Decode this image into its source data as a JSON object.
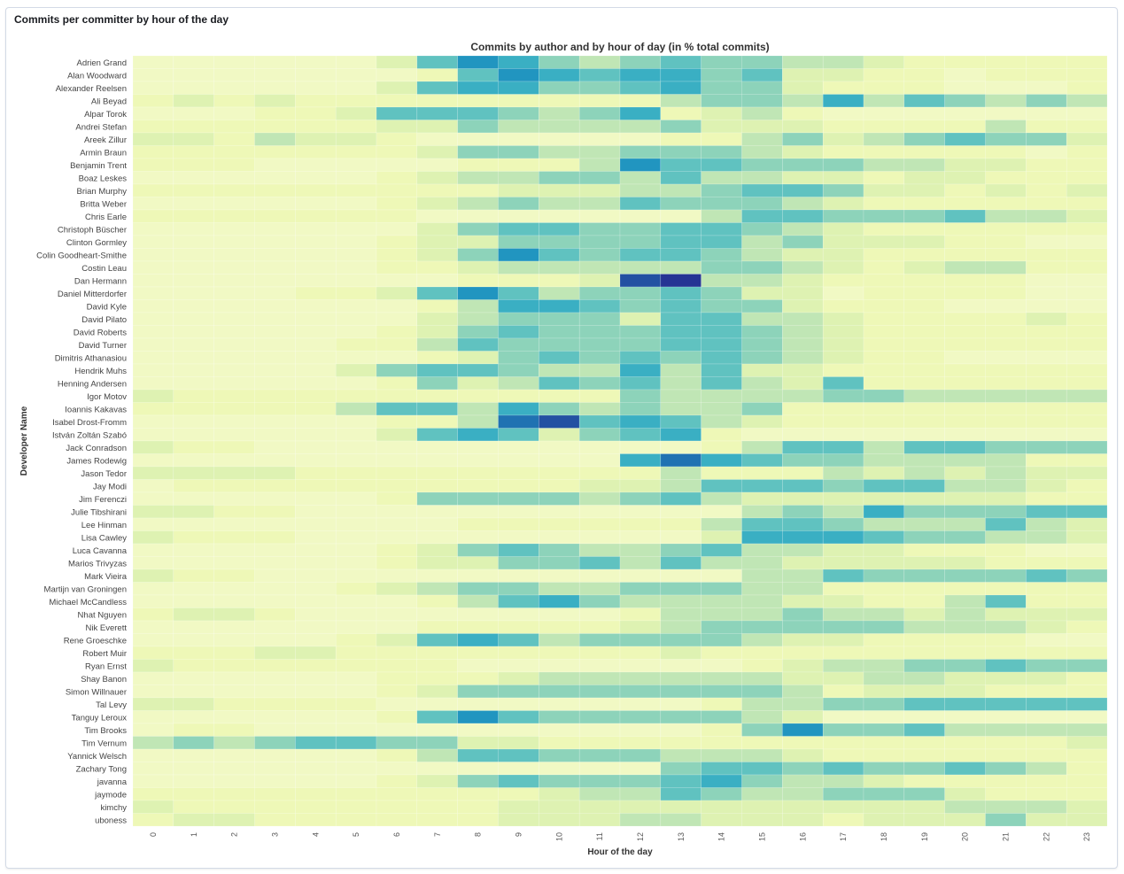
{
  "panel": {
    "title": "Commits per committer by hour of the day"
  },
  "chart_data": {
    "type": "heatmap",
    "title": "Commits by author and by hour of day (in % total commits)",
    "xlabel": "Hour of the day",
    "ylabel": "Developer Name",
    "x": [
      "0",
      "1",
      "2",
      "3",
      "4",
      "5",
      "6",
      "7",
      "8",
      "9",
      "10",
      "11",
      "12",
      "13",
      "14",
      "15",
      "16",
      "17",
      "18",
      "19",
      "20",
      "21",
      "22",
      "23"
    ],
    "y": [
      "Adrien Grand",
      "Alan Woodward",
      "Alexander Reelsen",
      "Ali Beyad",
      "Alpar Torok",
      "Andrei Stefan",
      "Areek Zillur",
      "Armin Braun",
      "Benjamin Trent",
      "Boaz Leskes",
      "Brian Murphy",
      "Britta Weber",
      "Chris Earle",
      "Christoph Büscher",
      "Clinton Gormley",
      "Colin Goodheart-Smithe",
      "Costin Leau",
      "Dan Hermann",
      "Daniel Mitterdorfer",
      "David Kyle",
      "David Pilato",
      "David Roberts",
      "David Turner",
      "Dimitris Athanasiou",
      "Hendrik Muhs",
      "Henning Andersen",
      "Igor Motov",
      "Ioannis Kakavas",
      "Isabel Drost-Fromm",
      "István Zoltán Szabó",
      "Jack Conradson",
      "James Rodewig",
      "Jason Tedor",
      "Jay Modi",
      "Jim Ferenczi",
      "Julie Tibshirani",
      "Lee Hinman",
      "Lisa Cawley",
      "Luca Cavanna",
      "Marios Trivyzas",
      "Mark Vieira",
      "Martijn van Groningen",
      "Michael McCandless",
      "Nhat Nguyen",
      "Nik Everett",
      "Rene Groeschke",
      "Robert Muir",
      "Ryan Ernst",
      "Shay Banon",
      "Simon Willnauer",
      "Tal Levy",
      "Tanguy Leroux",
      "Tim Brooks",
      "Tim Vernum",
      "Yannick Welsch",
      "Zachary Tong",
      "javanna",
      "jaymode",
      "kimchy",
      "uboness"
    ],
    "values": [
      [
        0,
        0,
        0,
        0,
        0,
        0,
        2,
        5,
        7,
        6,
        4,
        3,
        4,
        5,
        4,
        4,
        3,
        3,
        2,
        1,
        1,
        1,
        1,
        1
      ],
      [
        0,
        0,
        0,
        0,
        0,
        0,
        0,
        1,
        5,
        7,
        6,
        5,
        6,
        6,
        4,
        5,
        2,
        2,
        1,
        1,
        0,
        1,
        1,
        1
      ],
      [
        0,
        0,
        0,
        0,
        0,
        0,
        2,
        5,
        6,
        6,
        4,
        4,
        5,
        6,
        4,
        4,
        2,
        1,
        1,
        1,
        0,
        0,
        0,
        1
      ],
      [
        1,
        2,
        1,
        2,
        1,
        1,
        1,
        1,
        1,
        1,
        1,
        1,
        1,
        3,
        4,
        4,
        3,
        6,
        3,
        5,
        4,
        3,
        4,
        3
      ],
      [
        0,
        0,
        0,
        1,
        1,
        2,
        5,
        5,
        5,
        4,
        3,
        4,
        6,
        1,
        2,
        3,
        1,
        0,
        0,
        0,
        0,
        0,
        0,
        0
      ],
      [
        1,
        1,
        1,
        1,
        1,
        1,
        2,
        2,
        4,
        3,
        3,
        3,
        3,
        4,
        2,
        2,
        2,
        1,
        1,
        1,
        1,
        3,
        1,
        1
      ],
      [
        2,
        2,
        1,
        3,
        2,
        2,
        1,
        0,
        0,
        0,
        0,
        0,
        0,
        1,
        1,
        3,
        4,
        2,
        3,
        4,
        5,
        4,
        4,
        2
      ],
      [
        1,
        1,
        1,
        1,
        1,
        1,
        1,
        2,
        4,
        4,
        3,
        3,
        4,
        4,
        4,
        3,
        2,
        1,
        1,
        1,
        1,
        1,
        0,
        1
      ],
      [
        1,
        1,
        1,
        0,
        0,
        0,
        0,
        0,
        1,
        1,
        1,
        3,
        7,
        5,
        5,
        4,
        4,
        4,
        3,
        3,
        2,
        2,
        1,
        1
      ],
      [
        0,
        0,
        0,
        0,
        0,
        0,
        1,
        2,
        3,
        3,
        4,
        4,
        3,
        5,
        3,
        3,
        2,
        2,
        1,
        2,
        2,
        1,
        1,
        1
      ],
      [
        1,
        1,
        1,
        1,
        1,
        1,
        1,
        1,
        1,
        2,
        2,
        2,
        3,
        3,
        4,
        5,
        5,
        4,
        2,
        2,
        1,
        2,
        1,
        2
      ],
      [
        0,
        0,
        0,
        0,
        0,
        0,
        1,
        2,
        3,
        4,
        3,
        3,
        5,
        4,
        4,
        4,
        3,
        2,
        1,
        1,
        1,
        1,
        1,
        1
      ],
      [
        1,
        1,
        1,
        1,
        1,
        1,
        1,
        0,
        0,
        0,
        0,
        0,
        0,
        0,
        3,
        5,
        5,
        4,
        4,
        4,
        5,
        3,
        3,
        2
      ],
      [
        0,
        0,
        0,
        0,
        0,
        0,
        0,
        2,
        4,
        5,
        5,
        4,
        4,
        5,
        5,
        4,
        3,
        2,
        1,
        1,
        1,
        1,
        1,
        1
      ],
      [
        0,
        0,
        0,
        0,
        0,
        0,
        1,
        2,
        2,
        4,
        4,
        4,
        4,
        5,
        5,
        3,
        4,
        2,
        2,
        2,
        1,
        1,
        0,
        0
      ],
      [
        0,
        0,
        0,
        0,
        0,
        0,
        1,
        2,
        4,
        7,
        5,
        4,
        5,
        5,
        4,
        3,
        2,
        2,
        1,
        1,
        1,
        1,
        1,
        1
      ],
      [
        0,
        0,
        0,
        0,
        0,
        0,
        1,
        1,
        2,
        3,
        3,
        3,
        3,
        3,
        4,
        4,
        3,
        2,
        1,
        2,
        3,
        3,
        1,
        1
      ],
      [
        0,
        0,
        0,
        0,
        0,
        0,
        0,
        0,
        1,
        1,
        1,
        2,
        9,
        10,
        3,
        3,
        2,
        1,
        1,
        1,
        1,
        1,
        0,
        0
      ],
      [
        0,
        0,
        0,
        0,
        1,
        1,
        2,
        5,
        7,
        5,
        3,
        4,
        4,
        5,
        4,
        2,
        2,
        0,
        1,
        1,
        1,
        1,
        0,
        0
      ],
      [
        0,
        0,
        0,
        0,
        0,
        0,
        0,
        1,
        3,
        6,
        6,
        5,
        4,
        5,
        4,
        4,
        2,
        1,
        1,
        1,
        0,
        0,
        0,
        0
      ],
      [
        0,
        0,
        0,
        0,
        0,
        0,
        0,
        2,
        3,
        4,
        4,
        4,
        2,
        5,
        5,
        3,
        3,
        2,
        1,
        1,
        1,
        1,
        2,
        1
      ],
      [
        0,
        0,
        0,
        0,
        0,
        0,
        1,
        2,
        4,
        5,
        4,
        4,
        4,
        5,
        5,
        4,
        3,
        2,
        1,
        1,
        1,
        1,
        1,
        1
      ],
      [
        0,
        0,
        0,
        0,
        0,
        1,
        1,
        3,
        5,
        4,
        4,
        4,
        4,
        5,
        5,
        4,
        3,
        2,
        1,
        1,
        1,
        1,
        1,
        1
      ],
      [
        0,
        0,
        0,
        0,
        0,
        0,
        0,
        1,
        2,
        4,
        5,
        4,
        5,
        4,
        5,
        4,
        3,
        2,
        1,
        1,
        0,
        0,
        0,
        0
      ],
      [
        0,
        0,
        0,
        0,
        0,
        2,
        4,
        5,
        5,
        4,
        3,
        3,
        6,
        3,
        5,
        2,
        2,
        1,
        1,
        1,
        1,
        1,
        1,
        1
      ],
      [
        0,
        0,
        0,
        0,
        0,
        0,
        1,
        4,
        2,
        3,
        5,
        4,
        5,
        3,
        5,
        3,
        2,
        5,
        1,
        1,
        1,
        1,
        1,
        1
      ],
      [
        2,
        1,
        1,
        1,
        1,
        1,
        1,
        1,
        1,
        1,
        1,
        1,
        4,
        3,
        3,
        3,
        3,
        4,
        4,
        3,
        3,
        3,
        3,
        3
      ],
      [
        1,
        1,
        1,
        1,
        1,
        3,
        5,
        5,
        3,
        6,
        4,
        3,
        4,
        3,
        3,
        4,
        1,
        1,
        1,
        1,
        1,
        1,
        1,
        1
      ],
      [
        0,
        0,
        0,
        0,
        0,
        0,
        1,
        1,
        3,
        8,
        9,
        5,
        6,
        5,
        3,
        2,
        1,
        1,
        1,
        1,
        1,
        1,
        1,
        1
      ],
      [
        0,
        0,
        0,
        0,
        0,
        0,
        2,
        5,
        6,
        5,
        2,
        4,
        5,
        6,
        1,
        0,
        0,
        0,
        0,
        0,
        0,
        0,
        0,
        0
      ],
      [
        2,
        1,
        1,
        0,
        0,
        0,
        0,
        0,
        0,
        0,
        0,
        0,
        0,
        0,
        1,
        3,
        5,
        5,
        3,
        5,
        5,
        4,
        4,
        4
      ],
      [
        0,
        0,
        0,
        0,
        0,
        0,
        0,
        0,
        0,
        0,
        0,
        0,
        6,
        8,
        6,
        5,
        4,
        4,
        3,
        3,
        3,
        3,
        1,
        1
      ],
      [
        2,
        2,
        2,
        2,
        1,
        1,
        1,
        1,
        1,
        1,
        1,
        1,
        1,
        3,
        1,
        1,
        1,
        3,
        2,
        3,
        2,
        3,
        2,
        2
      ],
      [
        0,
        1,
        1,
        1,
        1,
        1,
        1,
        1,
        1,
        1,
        1,
        2,
        2,
        3,
        5,
        5,
        5,
        4,
        5,
        5,
        3,
        3,
        2,
        1
      ],
      [
        0,
        0,
        0,
        0,
        0,
        0,
        1,
        4,
        4,
        4,
        4,
        3,
        4,
        5,
        3,
        2,
        2,
        2,
        2,
        2,
        2,
        2,
        1,
        1
      ],
      [
        2,
        2,
        1,
        1,
        0,
        0,
        0,
        0,
        0,
        0,
        0,
        0,
        0,
        0,
        0,
        3,
        4,
        3,
        6,
        4,
        4,
        4,
        5,
        5
      ],
      [
        0,
        0,
        0,
        0,
        0,
        0,
        0,
        0,
        1,
        1,
        1,
        1,
        1,
        1,
        3,
        5,
        5,
        4,
        3,
        3,
        3,
        5,
        3,
        2
      ],
      [
        2,
        1,
        1,
        1,
        0,
        0,
        0,
        0,
        0,
        0,
        0,
        0,
        0,
        0,
        2,
        6,
        6,
        6,
        5,
        4,
        4,
        3,
        3,
        2
      ],
      [
        0,
        0,
        0,
        0,
        0,
        0,
        1,
        2,
        4,
        5,
        4,
        3,
        3,
        4,
        5,
        3,
        3,
        2,
        2,
        1,
        1,
        1,
        0,
        0
      ],
      [
        0,
        0,
        0,
        0,
        0,
        0,
        1,
        2,
        2,
        4,
        4,
        5,
        3,
        5,
        3,
        3,
        2,
        2,
        2,
        2,
        2,
        1,
        1,
        1
      ],
      [
        2,
        1,
        1,
        0,
        0,
        0,
        0,
        0,
        0,
        0,
        0,
        0,
        0,
        0,
        0,
        3,
        3,
        5,
        4,
        4,
        4,
        4,
        5,
        4
      ],
      [
        0,
        0,
        0,
        0,
        0,
        1,
        2,
        3,
        4,
        4,
        3,
        3,
        4,
        4,
        4,
        3,
        3,
        1,
        1,
        1,
        1,
        1,
        1,
        1
      ],
      [
        0,
        0,
        0,
        0,
        0,
        0,
        0,
        1,
        3,
        5,
        6,
        4,
        3,
        3,
        3,
        3,
        2,
        2,
        1,
        1,
        3,
        5,
        1,
        1
      ],
      [
        1,
        2,
        2,
        1,
        0,
        0,
        0,
        0,
        0,
        0,
        0,
        0,
        1,
        3,
        3,
        3,
        4,
        3,
        3,
        2,
        3,
        2,
        2,
        2
      ],
      [
        0,
        0,
        0,
        0,
        0,
        0,
        0,
        1,
        1,
        1,
        1,
        1,
        2,
        3,
        4,
        4,
        4,
        4,
        4,
        3,
        3,
        3,
        2,
        1
      ],
      [
        0,
        0,
        0,
        0,
        0,
        1,
        2,
        5,
        6,
        5,
        3,
        4,
        4,
        4,
        4,
        3,
        2,
        2,
        1,
        1,
        1,
        1,
        0,
        0
      ],
      [
        1,
        1,
        1,
        2,
        2,
        1,
        1,
        1,
        1,
        1,
        1,
        1,
        1,
        2,
        1,
        1,
        1,
        1,
        1,
        1,
        1,
        1,
        1,
        1
      ],
      [
        2,
        1,
        1,
        1,
        1,
        1,
        1,
        1,
        0,
        0,
        0,
        0,
        0,
        0,
        0,
        1,
        2,
        3,
        3,
        4,
        4,
        5,
        4,
        4
      ],
      [
        0,
        0,
        0,
        0,
        0,
        0,
        1,
        1,
        1,
        2,
        3,
        3,
        3,
        3,
        3,
        3,
        2,
        2,
        3,
        3,
        2,
        2,
        2,
        1
      ],
      [
        0,
        0,
        0,
        0,
        0,
        0,
        1,
        2,
        4,
        4,
        4,
        4,
        4,
        4,
        4,
        4,
        3,
        1,
        2,
        2,
        2,
        1,
        1,
        1
      ],
      [
        2,
        2,
        1,
        1,
        1,
        1,
        0,
        0,
        0,
        0,
        0,
        0,
        0,
        0,
        1,
        3,
        3,
        4,
        4,
        5,
        5,
        5,
        5,
        5
      ],
      [
        0,
        0,
        0,
        0,
        0,
        0,
        1,
        5,
        7,
        5,
        4,
        4,
        4,
        4,
        4,
        3,
        2,
        0,
        0,
        0,
        0,
        0,
        0,
        0
      ],
      [
        0,
        1,
        1,
        0,
        0,
        0,
        0,
        0,
        0,
        0,
        0,
        0,
        0,
        0,
        1,
        4,
        7,
        4,
        4,
        5,
        3,
        3,
        3,
        3
      ],
      [
        3,
        4,
        3,
        4,
        5,
        5,
        4,
        4,
        2,
        2,
        1,
        1,
        1,
        1,
        1,
        1,
        1,
        1,
        1,
        1,
        1,
        1,
        1,
        2
      ],
      [
        0,
        0,
        0,
        0,
        0,
        0,
        1,
        3,
        5,
        5,
        4,
        4,
        4,
        3,
        3,
        3,
        2,
        1,
        1,
        1,
        1,
        1,
        1,
        1
      ],
      [
        0,
        0,
        0,
        0,
        0,
        0,
        0,
        0,
        0,
        0,
        0,
        0,
        0,
        4,
        5,
        5,
        4,
        5,
        4,
        4,
        5,
        4,
        3,
        1
      ],
      [
        0,
        0,
        0,
        0,
        0,
        0,
        1,
        2,
        4,
        5,
        4,
        4,
        4,
        5,
        6,
        4,
        3,
        3,
        2,
        1,
        1,
        1,
        1,
        1
      ],
      [
        1,
        1,
        1,
        1,
        1,
        1,
        1,
        1,
        1,
        1,
        2,
        3,
        3,
        5,
        4,
        3,
        3,
        4,
        4,
        4,
        2,
        1,
        1,
        1
      ],
      [
        2,
        1,
        1,
        1,
        1,
        1,
        1,
        1,
        1,
        2,
        2,
        2,
        2,
        2,
        2,
        2,
        2,
        2,
        2,
        2,
        3,
        3,
        3,
        2
      ],
      [
        1,
        2,
        2,
        1,
        1,
        1,
        1,
        1,
        1,
        2,
        2,
        2,
        3,
        3,
        2,
        2,
        2,
        1,
        2,
        2,
        2,
        4,
        2,
        2
      ]
    ],
    "legend": "none",
    "colors": [
      "#edf8b1",
      "#c7e9b4",
      "#7fcdbb",
      "#41b6c4",
      "#1d91c0",
      "#225ea8",
      "#253494"
    ]
  }
}
